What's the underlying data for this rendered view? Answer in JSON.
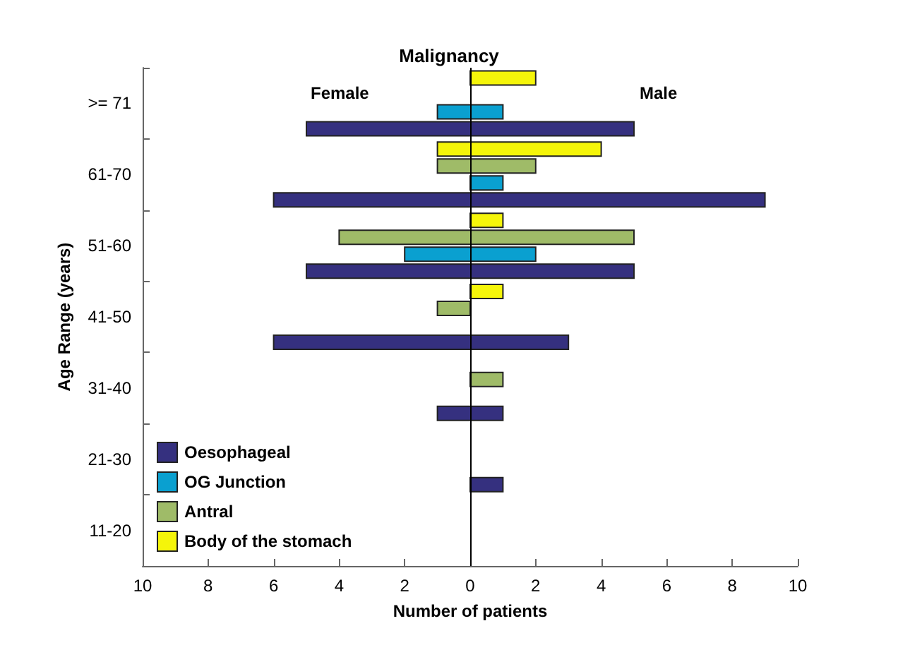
{
  "chart_data": {
    "type": "bar",
    "orientation": "horizontal",
    "title": "Malignancy",
    "xlabel": "Number of patients",
    "ylabel": "Age Range (years)",
    "annotations": [
      "Female",
      "Male"
    ],
    "categories": [
      ">= 71",
      "61-70",
      "51-60",
      "41-50",
      "31-40",
      "21-30",
      "11-20"
    ],
    "series": [
      {
        "name": "Body of the stomach",
        "color": "#f5f50a",
        "base": [
          0,
          -1,
          0,
          0,
          null,
          null,
          null
        ],
        "values": [
          2,
          5,
          1,
          1,
          0,
          0,
          0
        ]
      },
      {
        "name": "Antral",
        "color": "#9fbb68",
        "base": [
          null,
          -1,
          -4,
          -1,
          0,
          null,
          null
        ],
        "values": [
          0,
          3,
          9,
          1,
          1,
          0,
          0
        ]
      },
      {
        "name": "OG Junction",
        "color": "#0aa0d0",
        "base": [
          -1,
          0,
          -2,
          null,
          null,
          null,
          null
        ],
        "values": [
          2,
          1,
          4,
          0,
          0,
          0,
          0
        ]
      },
      {
        "name": "Oesophageal",
        "color": "#35307f",
        "base": [
          -5,
          -6,
          -5,
          -6,
          -1,
          0,
          null
        ],
        "values": [
          10,
          15,
          10,
          9,
          2,
          1,
          0
        ]
      }
    ],
    "xlim": [
      -10,
      10
    ],
    "xticks": [
      {
        "value": -10,
        "label": "10"
      },
      {
        "value": -8,
        "label": "8"
      },
      {
        "value": -6,
        "label": "6"
      },
      {
        "value": -4,
        "label": "4"
      },
      {
        "value": -2,
        "label": "2"
      },
      0,
      2,
      4,
      6,
      8,
      10
    ],
    "ref_lines": [
      {
        "axis": "x",
        "value": 0,
        "color": "#000000"
      }
    ],
    "grid": false,
    "legend": "bottom left"
  }
}
